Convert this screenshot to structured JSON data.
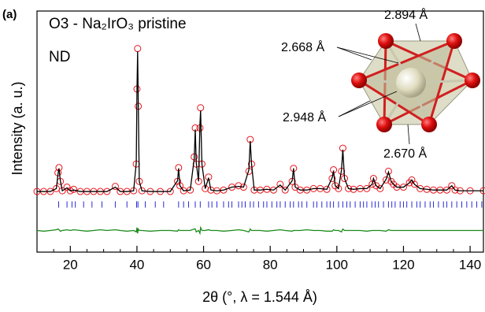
{
  "chart_data": {
    "type": "rietveld",
    "panel_label": "(a)",
    "title": "O3 - Na₂IrO₃ pristine",
    "subtitle": "ND",
    "ylabel": "Intensity (a. u.)",
    "xlabel": "2θ (°, λ = 1.544 Å)",
    "annotations": [
      "2.894 Å",
      "2.668 Å",
      "2.948 Å",
      "2.670 Å"
    ],
    "xlim": [
      10,
      144
    ],
    "ylim": [
      -41,
      126
    ],
    "xticks": [
      20,
      40,
      60,
      80,
      100,
      120,
      140
    ],
    "xminorticks": [
      10,
      15,
      25,
      30,
      35,
      45,
      50,
      55,
      65,
      70,
      75,
      85,
      90,
      95,
      105,
      110,
      115,
      125,
      130,
      135
    ],
    "x": [
      10,
      12,
      14,
      15.8,
      16.3,
      16.6,
      17,
      17.6,
      19,
      20,
      21,
      23,
      25,
      27,
      29,
      31,
      33.5,
      35,
      37,
      39,
      39.8,
      40,
      40.2,
      40.4,
      40.7,
      41.5,
      44,
      47,
      50,
      52.2,
      52.5,
      52.9,
      54,
      56,
      57.2,
      57.5,
      57.8,
      58.5,
      58.9,
      59.1,
      59.5,
      60.5,
      61.5,
      62.2,
      64,
      66,
      68.5,
      70.5,
      72,
      73.6,
      74,
      74.4,
      75.2,
      77,
      79,
      81,
      83,
      84.5,
      86.6,
      87,
      87.5,
      89,
      91,
      93,
      95,
      97,
      98.6,
      99,
      99.5,
      100.5,
      101.4,
      101.8,
      102.3,
      103.5,
      105,
      107,
      109,
      110.6,
      111,
      111.8,
      113,
      114.8,
      115.5,
      116.3,
      117,
      118,
      120,
      121.8,
      122.5,
      123.3,
      125,
      127,
      129,
      131,
      133,
      134.5,
      135.5,
      137,
      140,
      144
    ],
    "series": [
      {
        "style": "markers",
        "color": "#e8141c",
        "values": [
          1,
          1,
          1,
          3,
          14,
          17.5,
          8,
          1.5,
          4,
          1.5,
          2.5,
          1,
          1,
          1,
          1,
          1,
          4.5,
          1,
          1,
          1.5,
          20,
          72,
          100,
          60,
          8,
          1.5,
          1,
          1,
          1,
          8,
          17.5,
          5,
          1.5,
          2,
          25,
          45,
          20,
          8,
          45,
          59,
          20,
          3,
          11,
          2,
          1.5,
          2,
          4,
          5,
          4,
          15,
          37,
          20,
          2,
          2,
          2.5,
          2,
          6,
          2,
          8,
          17,
          4,
          2,
          2,
          3,
          3,
          2.5,
          10,
          16,
          5,
          3,
          15,
          31,
          10,
          3,
          2.5,
          3,
          3,
          6,
          10,
          5,
          3,
          9,
          15,
          8,
          6,
          4,
          4,
          7,
          9,
          6,
          3,
          2.5,
          2,
          2,
          2,
          5,
          2,
          1.5,
          1.5,
          1.5
        ]
      },
      {
        "style": "line",
        "color": "#000000",
        "values": [
          1,
          1,
          1,
          3,
          13,
          17,
          8.5,
          1.5,
          3.5,
          1.5,
          2,
          1,
          1,
          1,
          1,
          1,
          4,
          1,
          1,
          1.5,
          21,
          70,
          98,
          62,
          8,
          1.5,
          1,
          1,
          1,
          8.5,
          17,
          5,
          1.5,
          2,
          24,
          44,
          21,
          8,
          47,
          57,
          20,
          3,
          10.5,
          2,
          1.5,
          2,
          4,
          4.5,
          4,
          16,
          36,
          20,
          2,
          2,
          2.5,
          2,
          5.5,
          2,
          8.5,
          17,
          4,
          2,
          2,
          3,
          3,
          2.5,
          10.5,
          15.5,
          5,
          3,
          16,
          30,
          10,
          3,
          2.5,
          3,
          3,
          6,
          10,
          5,
          3,
          9.5,
          14.5,
          8,
          6,
          4,
          4,
          7,
          9,
          6,
          3,
          2.5,
          2,
          2,
          2,
          5,
          2,
          1.5,
          1.5,
          1.5
        ]
      },
      {
        "style": "line",
        "color": "#1a8a1a",
        "values": [
          -26,
          -26.5,
          -26,
          -25.5,
          -25,
          -25.5,
          -26.5,
          -26,
          -25.5,
          -26,
          -25.5,
          -26,
          -26.5,
          -26,
          -25.5,
          -26,
          -25.5,
          -26,
          -26.5,
          -26,
          -27,
          -24,
          -28,
          -25,
          -26,
          -26,
          -26.5,
          -26,
          -26,
          -26.5,
          -25.5,
          -26,
          -26,
          -26,
          -25,
          -25,
          -27,
          -26,
          -28,
          -24,
          -26,
          -26,
          -25.5,
          -26,
          -26,
          -26.5,
          -26,
          -25.5,
          -26,
          -27,
          -25,
          -26,
          -26,
          -26,
          -26.5,
          -26,
          -25.5,
          -26,
          -26.5,
          -26,
          -26,
          -26,
          -25.5,
          -26,
          -26,
          -26.5,
          -26.5,
          -25.5,
          -26,
          -26,
          -27,
          -25,
          -26,
          -26,
          -26,
          -26,
          -26.5,
          -26,
          -26,
          -26,
          -26,
          -26.5,
          -25.5,
          -26,
          -26,
          -26,
          -26,
          -26,
          -26,
          -26,
          -26,
          -26,
          -26,
          -26,
          -26,
          -26,
          -26,
          -26,
          -26,
          -26
        ]
      }
    ],
    "bragg_color": "#2a2ad8",
    "bragg_level": -8,
    "bragg_positions": [
      16.5,
      19,
      20.5,
      21.5,
      24,
      26.5,
      29.5,
      33.5,
      37,
      39.9,
      40.3,
      42.5,
      45.5,
      48,
      52.5,
      54,
      55.5,
      57.5,
      59,
      61.5,
      62.5,
      64,
      66,
      67.5,
      68.5,
      70.5,
      71.5,
      72.5,
      74,
      75,
      76.5,
      78,
      79,
      80.5,
      82,
      83,
      84.5,
      86,
      87,
      88.5,
      89.5,
      91,
      93,
      94,
      95.5,
      97,
      98,
      99,
      100.5,
      101.8,
      103,
      104,
      105.5,
      107,
      108,
      109,
      110.5,
      111.5,
      112.5,
      114,
      115.5,
      116.5,
      117.5,
      119,
      120,
      121,
      122.5,
      124,
      125,
      126.5,
      128,
      129,
      130.5,
      132,
      133,
      134.5,
      136,
      137.5,
      139,
      140.5,
      142,
      143.5
    ]
  }
}
